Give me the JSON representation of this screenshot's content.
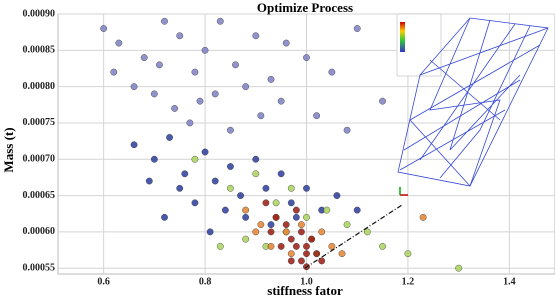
{
  "chart_data": {
    "type": "scatter",
    "title": "Optimize Process",
    "x_label": "stiffness fator",
    "y_label": "Mass (t)",
    "xlim": [
      0.51,
      1.49
    ],
    "ylim": [
      0.000542,
      0.0009
    ],
    "xticks": [
      0.6,
      0.8,
      {
        "value": 1,
        "label": "1.0"
      },
      1.2,
      1.4
    ],
    "yticks": [
      0.00055,
      {
        "value": 0.0006,
        "label": "0.00060"
      },
      0.00065,
      {
        "value": 0.0007,
        "label": "0.00070"
      },
      0.00075,
      {
        "value": 0.0008,
        "label": "0.00080"
      },
      0.00085,
      {
        "value": 0.0009,
        "label": "0.00090"
      }
    ],
    "grid": true,
    "series": [
      {
        "color": "#7c7fc4",
        "x": [
          0.6,
          0.63,
          0.68,
          0.72,
          0.75,
          0.78,
          0.8,
          0.83,
          0.86,
          0.9,
          0.93,
          0.96,
          1.0,
          1.05,
          1.1,
          1.15,
          0.7,
          0.74,
          0.82,
          0.88,
          0.95,
          1.02,
          0.66,
          0.77,
          0.85,
          0.91,
          1.08,
          0.62,
          0.71,
          0.79
        ],
        "values": [
          0.00088,
          0.00086,
          0.00084,
          0.00089,
          0.00087,
          0.00082,
          0.00085,
          0.00089,
          0.00083,
          0.00087,
          0.00081,
          0.00086,
          0.00084,
          0.00082,
          0.00088,
          0.00078,
          0.00079,
          0.00077,
          0.00079,
          0.0008,
          0.00078,
          0.00076,
          0.0008,
          0.00075,
          0.00074,
          0.00076,
          0.00074,
          0.00082,
          0.00083,
          0.00078
        ]
      },
      {
        "color": "#2a3c9c",
        "x": [
          0.66,
          0.7,
          0.73,
          0.76,
          0.8,
          0.82,
          0.85,
          0.87,
          0.9,
          0.92,
          0.95,
          0.97,
          1.0,
          1.03,
          1.06,
          0.75,
          0.78,
          0.84,
          0.88,
          0.93,
          0.98,
          1.1,
          0.69,
          0.72,
          0.81
        ],
        "values": [
          0.00072,
          0.0007,
          0.00073,
          0.00068,
          0.00071,
          0.00067,
          0.00069,
          0.00065,
          0.0007,
          0.00066,
          0.00068,
          0.00064,
          0.00066,
          0.00063,
          0.00065,
          0.00066,
          0.00064,
          0.00063,
          0.00062,
          0.00061,
          0.00062,
          0.00063,
          0.00067,
          0.00062,
          0.0006
        ]
      },
      {
        "color": "#a8d35a",
        "x": [
          0.78,
          0.85,
          0.9,
          0.94,
          0.97,
          1.0,
          1.04,
          1.08,
          1.12,
          0.88,
          0.92,
          0.96,
          1.02,
          0.83,
          1.15,
          1.3,
          1.2
        ],
        "values": [
          0.0007,
          0.00066,
          0.00068,
          0.00064,
          0.00066,
          0.00062,
          0.00063,
          0.00061,
          0.0006,
          0.00059,
          0.00058,
          0.0006,
          0.00057,
          0.00058,
          0.00058,
          0.00055,
          0.00057
        ]
      },
      {
        "color": "#e6822e",
        "x": [
          0.88,
          0.91,
          0.94,
          0.96,
          0.99,
          1.01,
          1.03,
          0.93,
          0.97,
          1.05,
          0.9,
          1.07,
          1.23
        ],
        "values": [
          0.00063,
          0.00061,
          0.00062,
          0.0006,
          0.00061,
          0.00059,
          0.0006,
          0.00058,
          0.00057,
          0.00058,
          0.0006,
          0.00057,
          0.00062
        ]
      },
      {
        "color": "#9a1a12",
        "x": [
          0.92,
          0.94,
          0.96,
          0.97,
          0.98,
          0.99,
          1.0,
          1.01,
          1.02,
          0.95,
          0.97,
          0.99,
          1.0,
          1.03,
          0.93,
          0.98,
          1.0
        ],
        "values": [
          0.00064,
          0.00062,
          0.00061,
          0.00059,
          0.00063,
          0.0006,
          0.00058,
          0.00059,
          0.00057,
          0.00058,
          0.00056,
          0.00056,
          0.000552,
          0.00056,
          0.0006,
          0.00058,
          0.00057
        ]
      }
    ]
  }
}
